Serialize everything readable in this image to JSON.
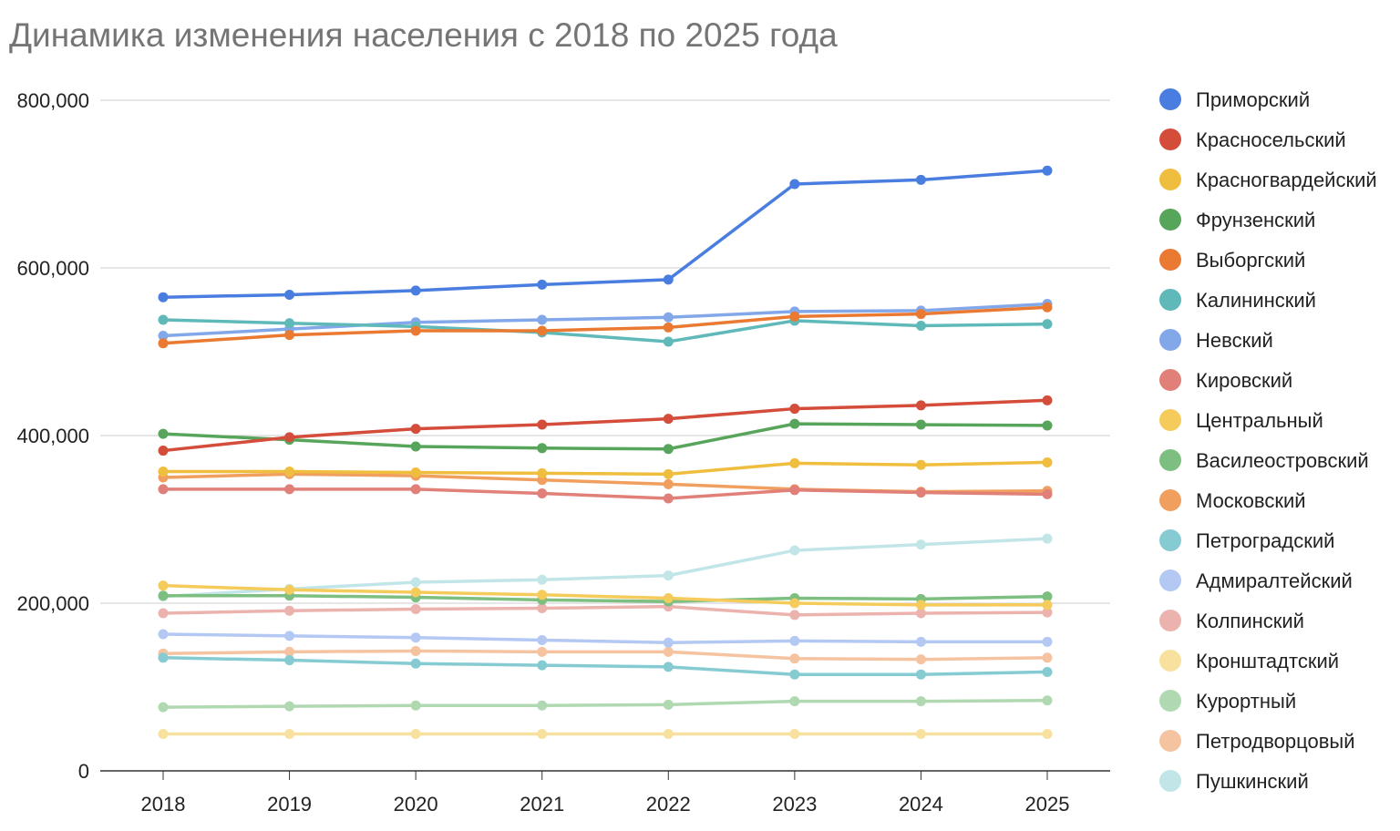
{
  "chart_data": {
    "type": "line",
    "title": "Динамика изменения населения с 2018 по 2025 года",
    "xlabel": "",
    "ylabel": "",
    "ylim": [
      0,
      800000
    ],
    "y_ticks": [
      "0",
      "200,000",
      "400,000",
      "600,000",
      "800,000"
    ],
    "categories": [
      "2018",
      "2019",
      "2020",
      "2021",
      "2022",
      "2023",
      "2024",
      "2025"
    ],
    "grid": true,
    "legend_position": "right",
    "series": [
      {
        "name": "Приморский",
        "color": "#4a7de0",
        "values": [
          565000,
          568000,
          573000,
          580000,
          586000,
          700000,
          705000,
          716000
        ]
      },
      {
        "name": "Красносельский",
        "color": "#d44c3a",
        "values": [
          382000,
          398000,
          408000,
          413000,
          420000,
          432000,
          436000,
          442000
        ]
      },
      {
        "name": "Красногвардейский",
        "color": "#f0be3f",
        "values": [
          357000,
          357000,
          356000,
          355000,
          354000,
          367000,
          365000,
          368000
        ]
      },
      {
        "name": "Фрунзенский",
        "color": "#57a55a",
        "values": [
          402000,
          395000,
          387000,
          385000,
          384000,
          414000,
          413000,
          412000
        ]
      },
      {
        "name": "Выборгский",
        "color": "#ea7a31",
        "values": [
          510000,
          520000,
          525000,
          525000,
          529000,
          542000,
          545000,
          553000
        ]
      },
      {
        "name": "Калининский",
        "color": "#5fb9b9",
        "values": [
          538000,
          534000,
          530000,
          523000,
          512000,
          537000,
          531000,
          533000
        ]
      },
      {
        "name": "Невский",
        "color": "#83a8ea",
        "values": [
          519000,
          527000,
          535000,
          538000,
          541000,
          548000,
          549000,
          557000
        ]
      },
      {
        "name": "Кировский",
        "color": "#e08079",
        "values": [
          336000,
          336000,
          336000,
          331000,
          325000,
          335000,
          332000,
          330000
        ]
      },
      {
        "name": "Центральный",
        "color": "#f5cb5b",
        "values": [
          221000,
          216000,
          213000,
          210000,
          206000,
          200000,
          198000,
          198000
        ]
      },
      {
        "name": "Василеостровский",
        "color": "#7dbf81",
        "values": [
          209000,
          209000,
          207000,
          204000,
          202000,
          206000,
          205000,
          208000
        ]
      },
      {
        "name": "Московский",
        "color": "#f09f5e",
        "values": [
          350000,
          354000,
          352000,
          347000,
          342000,
          336000,
          333000,
          334000
        ]
      },
      {
        "name": "Петроградский",
        "color": "#86cbd2",
        "values": [
          135000,
          132000,
          128000,
          126000,
          124000,
          115000,
          115000,
          118000
        ]
      },
      {
        "name": "Адмиралтейский",
        "color": "#b4c8f4",
        "values": [
          163000,
          161000,
          159000,
          156000,
          153000,
          155000,
          154000,
          154000
        ]
      },
      {
        "name": "Колпинский",
        "color": "#ecb3ae",
        "values": [
          188000,
          191000,
          193000,
          194000,
          196000,
          186000,
          188000,
          189000
        ]
      },
      {
        "name": "Кронштадтский",
        "color": "#f8e19f",
        "values": [
          44000,
          44000,
          44000,
          44000,
          44000,
          44000,
          44000,
          44000
        ]
      },
      {
        "name": "Курортный",
        "color": "#b0d9b2",
        "values": [
          76000,
          77000,
          78000,
          78000,
          79000,
          83000,
          83000,
          84000
        ]
      },
      {
        "name": "Петродворцовый",
        "color": "#f5c3a0",
        "values": [
          140000,
          142000,
          143000,
          142000,
          142000,
          134000,
          133000,
          135000
        ]
      },
      {
        "name": "Пушкинский",
        "color": "#c2e6e8",
        "values": [
          208000,
          217000,
          225000,
          228000,
          233000,
          263000,
          270000,
          277000
        ]
      }
    ]
  }
}
